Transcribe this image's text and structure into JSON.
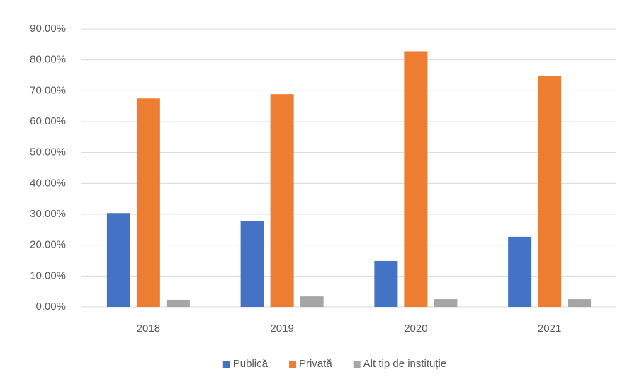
{
  "chart_data": {
    "type": "bar",
    "categories": [
      "2018",
      "2019",
      "2020",
      "2021"
    ],
    "series": [
      {
        "name": "Publică",
        "color": "#4472c4",
        "values": [
          30.4,
          27.9,
          14.9,
          22.7
        ]
      },
      {
        "name": "Privată",
        "color": "#ed7d31",
        "values": [
          67.5,
          68.9,
          82.8,
          74.8
        ]
      },
      {
        "name": "Alt tip de instituție",
        "color": "#a5a5a5",
        "values": [
          2.3,
          3.4,
          2.5,
          2.5
        ]
      }
    ],
    "ylim": [
      0,
      90
    ],
    "yticks": [
      {
        "value": 0,
        "label": "0.00%"
      },
      {
        "value": 10,
        "label": "10.00%"
      },
      {
        "value": 20,
        "label": "20.00%"
      },
      {
        "value": 30,
        "label": "30.00%"
      },
      {
        "value": 40,
        "label": "40.00%"
      },
      {
        "value": 50,
        "label": "50.00%"
      },
      {
        "value": 60,
        "label": "60.00%"
      },
      {
        "value": 70,
        "label": "70.00%"
      },
      {
        "value": 80,
        "label": "80.00%"
      },
      {
        "value": 90,
        "label": "90.00%"
      }
    ],
    "grid": true,
    "legend": "bottom"
  }
}
